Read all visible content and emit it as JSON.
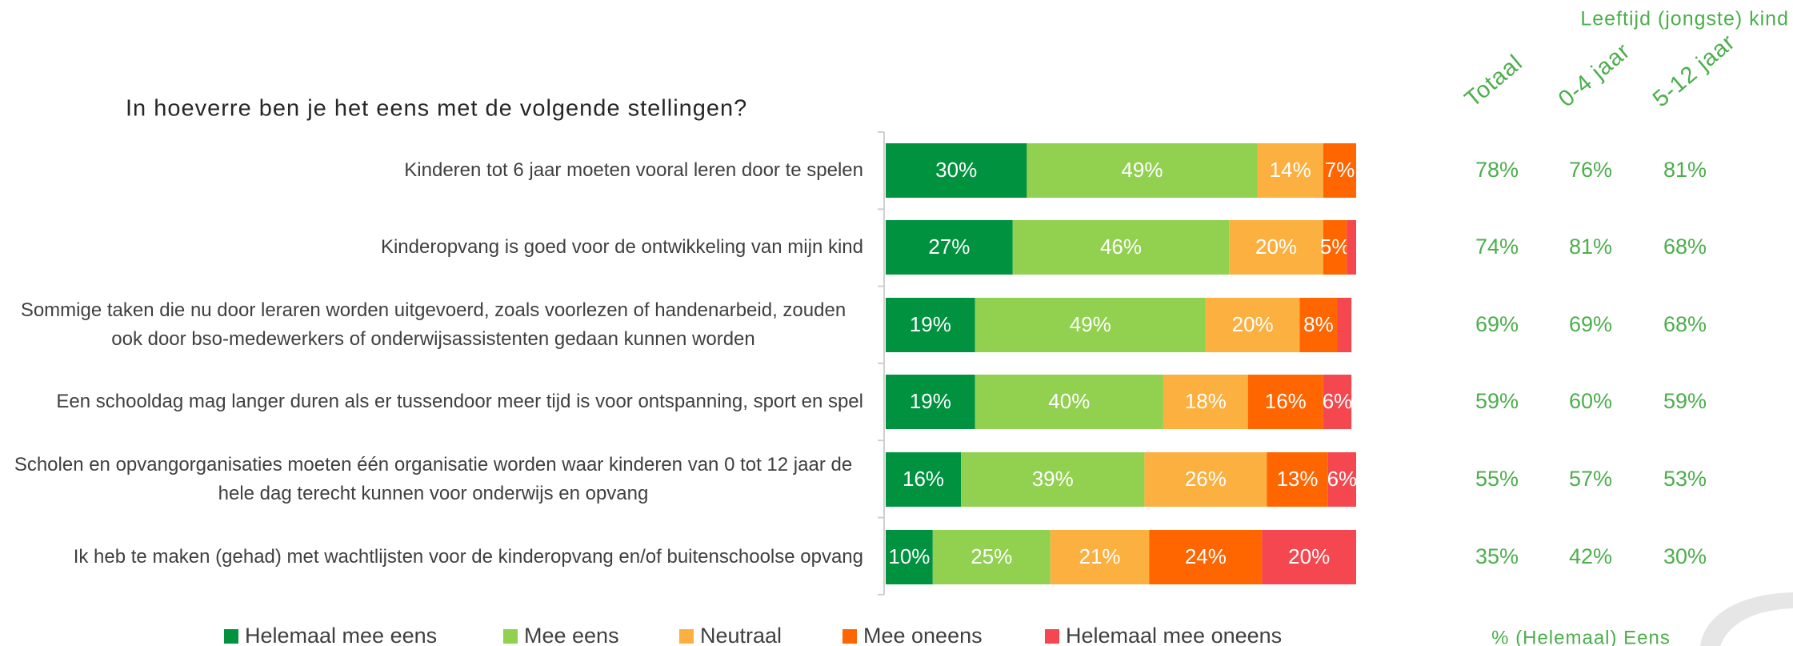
{
  "chart_data": {
    "type": "bar",
    "orientation": "horizontal",
    "stacked": true,
    "title": "In hoeverre ben je het eens met de volgende stellingen?",
    "categories": [
      "Kinderen tot 6 jaar moeten vooral leren door te spelen",
      "Kinderopvang is goed voor de ontwikkeling van mijn kind",
      "Sommige taken die nu door leraren worden uitgevoerd, zoals voorlezen of handenarbeid, zouden ook door bso-medewerkers of onderwijsassistenten gedaan kunnen worden",
      "Een schooldag mag langer duren als er tussendoor meer tijd is voor ontspanning, sport en spel",
      "Scholen en opvangorganisaties moeten één organisatie worden waar kinderen van 0 tot 12 jaar de hele dag terecht kunnen voor onderwijs en opvang",
      "Ik heb te maken (gehad) met wachtlijsten voor de kinderopvang en/of buitenschoolse opvang"
    ],
    "series": [
      {
        "name": "Helemaal mee eens",
        "color": "#00923f",
        "values": [
          30,
          27,
          19,
          19,
          16,
          10
        ],
        "value_labels": [
          "30%",
          "27%",
          "19%",
          "19%",
          "16%",
          "10%"
        ]
      },
      {
        "name": "Mee eens",
        "color": "#92d050",
        "values": [
          49,
          46,
          49,
          40,
          39,
          25
        ],
        "value_labels": [
          "49%",
          "46%",
          "49%",
          "40%",
          "39%",
          "25%"
        ]
      },
      {
        "name": "Neutraal",
        "color": "#fbb040",
        "values": [
          14,
          20,
          20,
          18,
          26,
          21
        ],
        "value_labels": [
          "14%",
          "20%",
          "20%",
          "18%",
          "26%",
          "21%"
        ]
      },
      {
        "name": "Mee oneens",
        "color": "#ff6600",
        "values": [
          7,
          5,
          8,
          16,
          13,
          24
        ],
        "value_labels": [
          "7%",
          "5%",
          "8%",
          "16%",
          "13%",
          "24%"
        ]
      },
      {
        "name": "Helemaal mee oneens",
        "color": "#f5474f",
        "values": [
          0,
          2,
          3,
          6,
          6,
          20
        ],
        "value_labels": [
          null,
          null,
          null,
          "6%",
          "6%",
          "20%"
        ]
      }
    ],
    "xlim": [
      0,
      100
    ],
    "legend": "bottom",
    "summary": {
      "title": "Leeftijd (jongste) kind",
      "columns": [
        "Totaal",
        "0-4 jaar",
        "5-12 jaar"
      ],
      "rows": [
        [
          "78%",
          "76%",
          "81%"
        ],
        [
          "74%",
          "81%",
          "68%"
        ],
        [
          "69%",
          "69%",
          "68%"
        ],
        [
          "59%",
          "60%",
          "59%"
        ],
        [
          "55%",
          "57%",
          "53%"
        ],
        [
          "35%",
          "42%",
          "30%"
        ]
      ],
      "footer": "% (Helemaal) Eens",
      "color": "#4cae4c"
    }
  }
}
